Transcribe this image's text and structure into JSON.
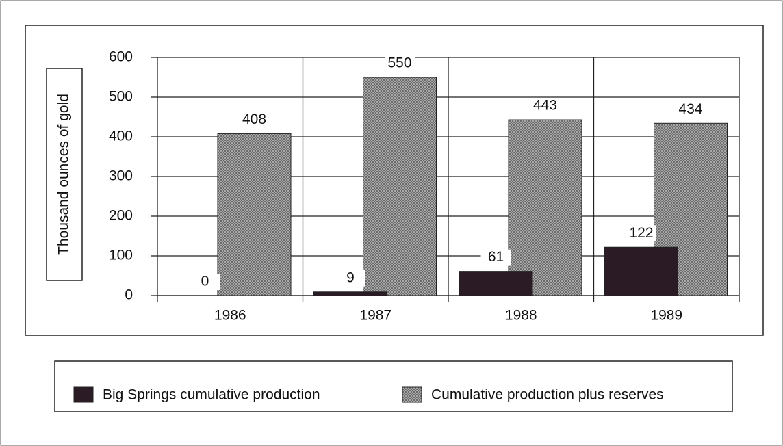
{
  "chart_data": {
    "type": "bar",
    "ylabel": "Thousand ounces of gold",
    "categories": [
      "1986",
      "1987",
      "1988",
      "1989"
    ],
    "series": [
      {
        "name": "Big Springs cumulative production",
        "color": "#2b1b24",
        "values": [
          0,
          9,
          61,
          122
        ]
      },
      {
        "name": "Cumulative production plus reserves",
        "color": "#a9a9a9",
        "values": [
          408,
          550,
          443,
          434
        ]
      }
    ],
    "ylim": [
      0,
      600
    ],
    "yticks": [
      0,
      100,
      200,
      300,
      400,
      500,
      600
    ],
    "grid": true
  }
}
